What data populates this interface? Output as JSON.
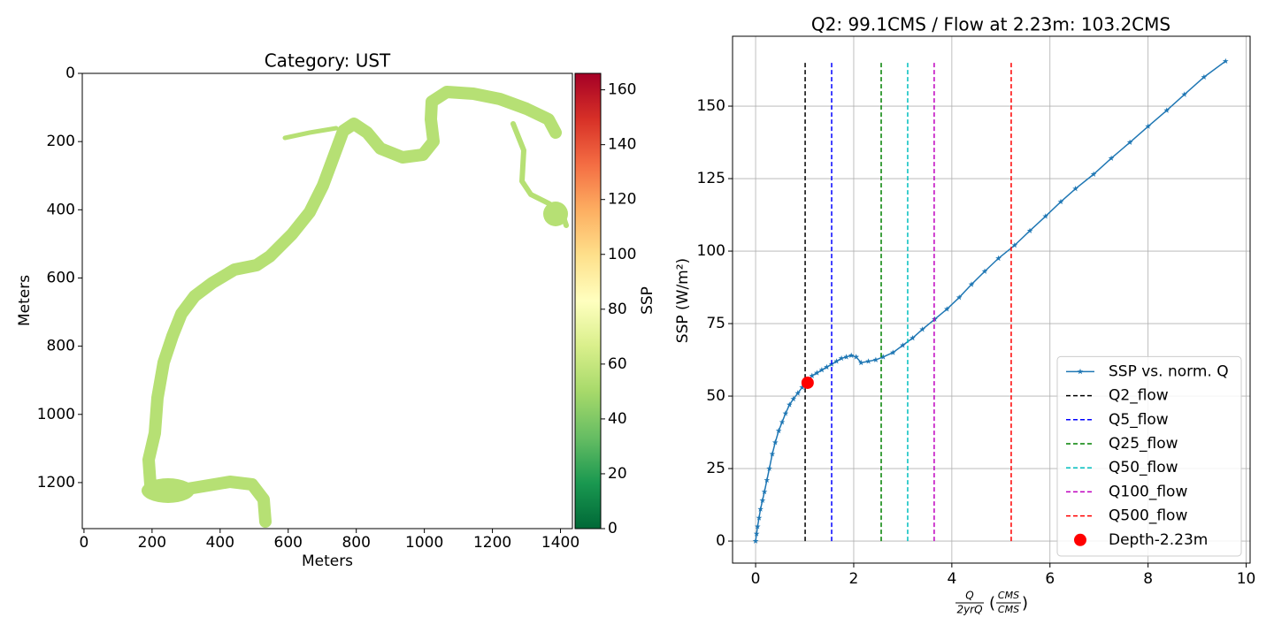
{
  "chart_data": [
    {
      "type": "image",
      "title": "Category: UST",
      "xlabel": "Meters",
      "ylabel": "Meters",
      "xlim": [
        -5,
        1435
      ],
      "ylim": [
        1335,
        0
      ],
      "xticks": [
        0,
        200,
        400,
        600,
        800,
        1000,
        1200,
        1400
      ],
      "yticks": [
        0,
        200,
        400,
        600,
        800,
        1000,
        1200
      ],
      "raster_value": 55,
      "colorbar": {
        "label": "SSP",
        "clim": [
          0,
          166
        ],
        "ticks": [
          0,
          20,
          40,
          60,
          80,
          100,
          120,
          140,
          160
        ],
        "colors": [
          "#006837",
          "#1a9850",
          "#66bd63",
          "#a6d96a",
          "#d9ef8b",
          "#ffffbf",
          "#fee08b",
          "#fdae61",
          "#f46d43",
          "#d73027",
          "#a50026"
        ]
      }
    },
    {
      "type": "line",
      "title": "Q2: 99.1CMS / Flow at 2.23m: 103.2CMS",
      "xlabel": {
        "num": "Q",
        "den": "2yrQ",
        "unit_num": "CMS",
        "unit_den": "CMS"
      },
      "ylabel": "SSP (W/m²)",
      "xlim": [
        -0.47,
        10.08
      ],
      "ylim": [
        -7.6,
        174.1
      ],
      "xticks": [
        0,
        2,
        4,
        6,
        8,
        10
      ],
      "yticks": [
        0,
        25,
        50,
        75,
        100,
        125,
        150
      ],
      "grid": true,
      "legend": "lower right",
      "x": [
        0,
        0.02,
        0.04,
        0.07,
        0.1,
        0.14,
        0.18,
        0.23,
        0.28,
        0.34,
        0.4,
        0.47,
        0.54,
        0.61,
        0.69,
        0.77,
        0.86,
        0.95,
        1.05,
        1.15,
        1.25,
        1.35,
        1.45,
        1.55,
        1.65,
        1.75,
        1.85,
        1.95,
        2.05,
        2.15,
        2.3,
        2.45,
        2.6,
        2.8,
        3.0,
        3.2,
        3.4,
        3.65,
        3.9,
        4.15,
        4.4,
        4.67,
        4.95,
        5.28,
        5.59,
        5.91,
        6.22,
        6.52,
        6.89,
        7.25,
        7.63,
        8.0,
        8.38,
        8.74,
        9.14,
        9.58
      ],
      "series": [
        {
          "name": "SSP vs. norm. Q",
          "color": "#1f77b4",
          "marker": "star",
          "values": [
            0,
            2.5,
            5,
            8,
            11,
            14,
            17,
            21,
            25,
            30,
            34,
            38,
            41,
            44,
            47,
            49,
            51,
            53,
            55,
            57,
            58,
            59,
            60,
            61,
            62,
            63,
            63.5,
            64,
            63.5,
            61.5,
            62,
            62.5,
            63.5,
            65,
            67.5,
            70,
            73,
            76.5,
            80,
            84,
            88.5,
            93,
            97.5,
            102,
            107,
            112,
            117,
            121.5,
            126.5,
            132,
            137.5,
            143,
            148.5,
            154,
            160,
            165.5
          ]
        }
      ],
      "vlines": [
        {
          "name": "Q2_flow",
          "color": "#000000",
          "x": 1.01,
          "ymin": 0,
          "ymax": 165.5
        },
        {
          "name": "Q5_flow",
          "color": "#0000ff",
          "x": 1.55,
          "ymin": 0,
          "ymax": 165.5
        },
        {
          "name": "Q25_flow",
          "color": "#008000",
          "x": 2.56,
          "ymin": 0,
          "ymax": 165.5
        },
        {
          "name": "Q50_flow",
          "color": "#00bfbf",
          "x": 3.1,
          "ymin": 0,
          "ymax": 165.5
        },
        {
          "name": "Q100_flow",
          "color": "#bf00bf",
          "x": 3.64,
          "ymin": 0,
          "ymax": 165.5
        },
        {
          "name": "Q500_flow",
          "color": "#ff0000",
          "x": 5.21,
          "ymin": 0,
          "ymax": 165.5
        }
      ],
      "points": [
        {
          "name": "Depth-2.23m",
          "color": "#ff0000",
          "x": 1.06,
          "y": 54.6
        }
      ]
    }
  ]
}
